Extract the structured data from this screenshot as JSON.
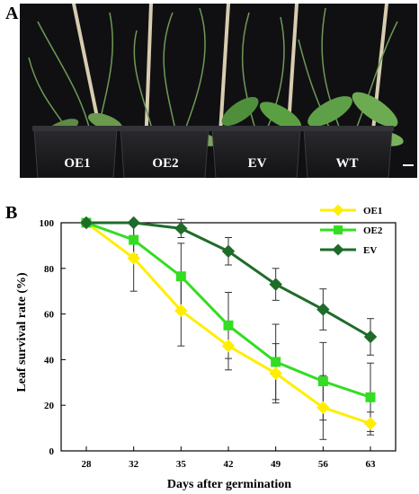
{
  "panel_a": {
    "letter": "A",
    "plants": [
      {
        "label": "OE1"
      },
      {
        "label": "OE2"
      },
      {
        "label": "EV"
      },
      {
        "label": "WT"
      }
    ]
  },
  "panel_b": {
    "letter": "B"
  },
  "chart_data": {
    "type": "line",
    "title": "",
    "xlabel": "Days after germination",
    "ylabel": "Leaf survival rate (%)",
    "categories": [
      "28",
      "32",
      "35",
      "42",
      "49",
      "56",
      "63"
    ],
    "ylim": [
      0,
      100
    ],
    "yticks": [
      0,
      20,
      40,
      60,
      80,
      100
    ],
    "grid": false,
    "legend": "top-right",
    "series": [
      {
        "name": "OE1",
        "color": "#ffee00",
        "marker": "diamond",
        "values": [
          100,
          84.5,
          61.5,
          46,
          34,
          19,
          12
        ],
        "errors": [
          0,
          14.5,
          15.5,
          10.5,
          13,
          14,
          5
        ]
      },
      {
        "name": "OE2",
        "color": "#33dd22",
        "marker": "square",
        "values": [
          100,
          92.5,
          76.5,
          55,
          39,
          30.5,
          23.5
        ],
        "errors": [
          0,
          6.5,
          14.5,
          14.5,
          16.5,
          17,
          15
        ]
      },
      {
        "name": "EV",
        "color": "#1f6b2a",
        "marker": "diamond",
        "values": [
          100,
          100,
          97.5,
          87.5,
          73,
          62,
          50
        ],
        "errors": [
          0,
          0,
          4,
          6,
          7,
          9,
          8
        ]
      }
    ]
  }
}
